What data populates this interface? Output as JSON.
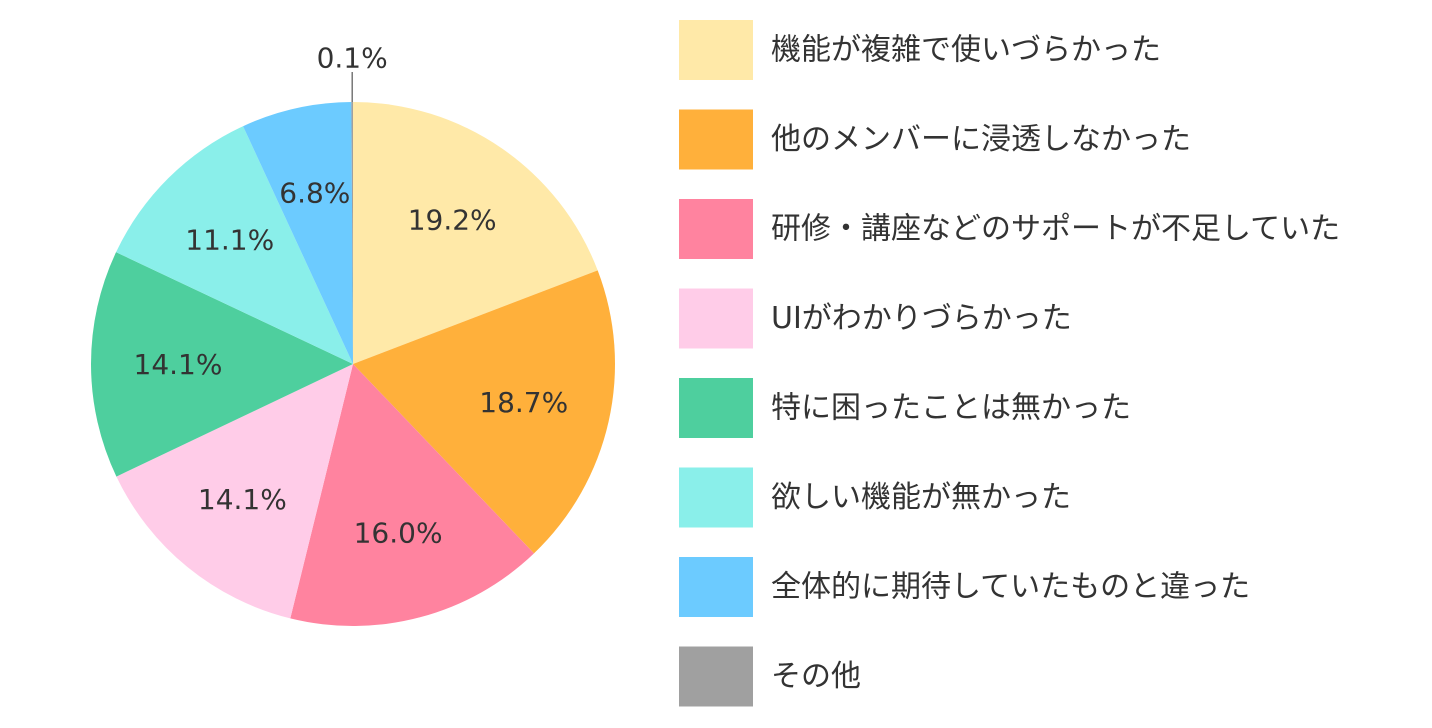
{
  "chart_data": {
    "type": "pie",
    "title": "",
    "start_angle_deg": 0,
    "direction": "clockwise",
    "legend_position": "right",
    "slices": [
      {
        "label": "機能が複雑で使いづらかった",
        "value": 19.2,
        "value_label": "19.2%",
        "color": "#FFE9A8"
      },
      {
        "label": "他のメンバーに浸透しなかった",
        "value": 18.7,
        "value_label": "18.7%",
        "color": "#FFB03B"
      },
      {
        "label": "研修・講座などのサポートが不足していた",
        "value": 16.0,
        "value_label": "16.0%",
        "color": "#FF839F"
      },
      {
        "label": "UIがわかりづらかった",
        "value": 14.1,
        "value_label": "14.1%",
        "color": "#FFCCE8"
      },
      {
        "label": "特に困ったことは無かった",
        "value": 14.1,
        "value_label": "14.1%",
        "color": "#4ECF9E"
      },
      {
        "label": "欲しい機能が無かった",
        "value": 11.1,
        "value_label": "11.1%",
        "color": "#8AEFEA"
      },
      {
        "label": "全体的に期待していたものと違った",
        "value": 6.8,
        "value_label": "6.8%",
        "color": "#6CCBFF"
      },
      {
        "label": "その他",
        "value": 0.1,
        "value_label": "0.1%",
        "color": "#A0A0A0"
      }
    ]
  }
}
